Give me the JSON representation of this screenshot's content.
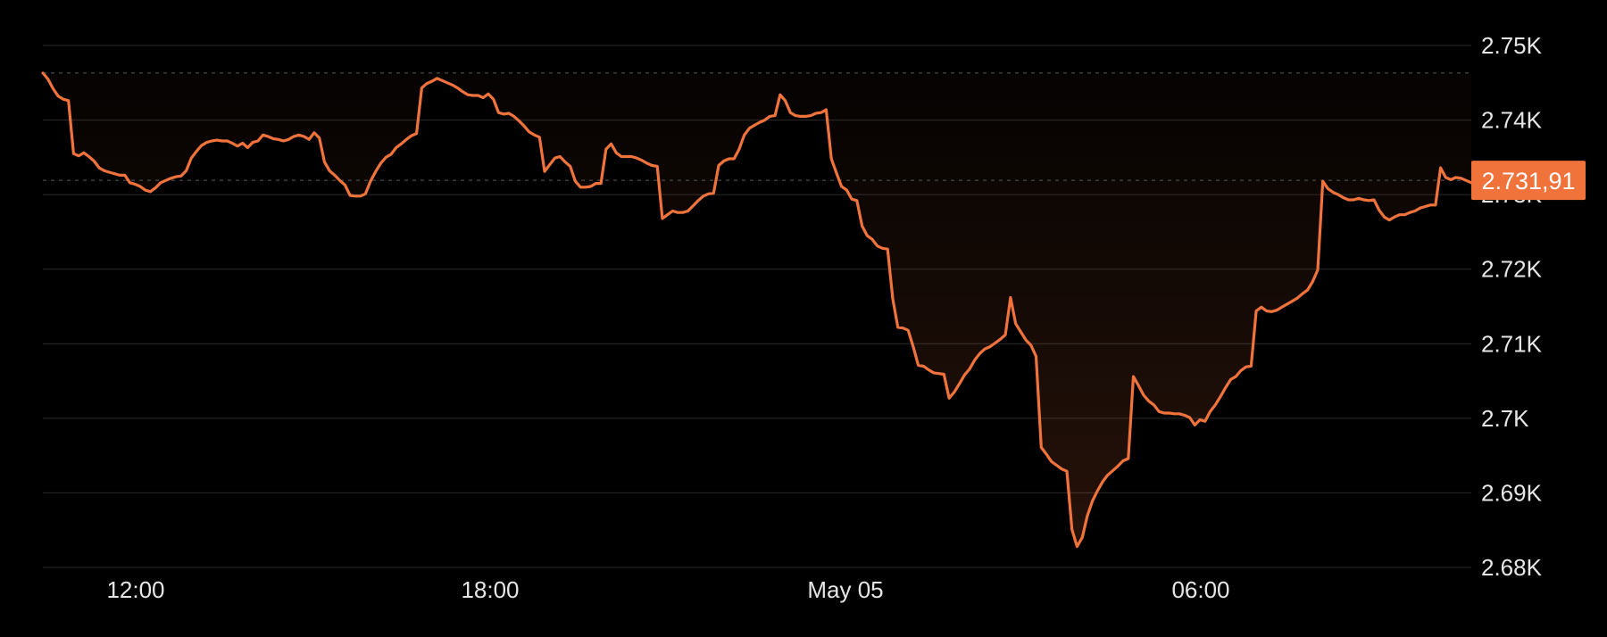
{
  "chart_data": {
    "type": "area",
    "series": [
      {
        "values": [
          2746.3,
          2745.5,
          2744.2,
          2743.2,
          2742.8,
          2742.6,
          2735.5,
          2735.2,
          2735.6,
          2735.1,
          2734.5,
          2733.6,
          2733.2,
          2733.0,
          2732.8,
          2732.6,
          2732.6,
          2731.6,
          2731.4,
          2731.1,
          2730.6,
          2730.4,
          2730.9,
          2731.6,
          2731.9,
          2732.2,
          2732.4,
          2732.5,
          2733.2,
          2734.9,
          2735.8,
          2736.6,
          2737.0,
          2737.2,
          2737.3,
          2737.2,
          2737.2,
          2736.9,
          2736.5,
          2736.9,
          2736.3,
          2737.0,
          2737.2,
          2738.0,
          2737.8,
          2737.5,
          2737.4,
          2737.2,
          2737.4,
          2737.8,
          2738.0,
          2737.8,
          2737.4,
          2738.3,
          2737.6,
          2734.4,
          2733.2,
          2732.6,
          2731.9,
          2731.3,
          2729.9,
          2729.8,
          2729.8,
          2730.1,
          2731.8,
          2733.1,
          2734.2,
          2735.0,
          2735.4,
          2736.3,
          2736.8,
          2737.4,
          2737.9,
          2738.2,
          2744.3,
          2744.9,
          2745.2,
          2745.6,
          2745.3,
          2745.0,
          2744.7,
          2744.3,
          2743.8,
          2743.4,
          2743.3,
          2743.3,
          2743.0,
          2743.5,
          2742.8,
          2741.0,
          2740.8,
          2740.9,
          2740.5,
          2739.9,
          2739.2,
          2738.4,
          2738.0,
          2737.7,
          2733.1,
          2734.0,
          2734.9,
          2735.1,
          2734.4,
          2733.8,
          2731.8,
          2731.0,
          2731.0,
          2731.1,
          2731.5,
          2731.5,
          2736.1,
          2736.8,
          2735.6,
          2735.1,
          2735.1,
          2735.1,
          2734.9,
          2734.6,
          2734.2,
          2733.9,
          2733.8,
          2726.8,
          2727.3,
          2727.8,
          2727.6,
          2727.6,
          2727.8,
          2728.5,
          2729.2,
          2729.8,
          2730.1,
          2730.2,
          2733.9,
          2734.5,
          2734.8,
          2734.8,
          2736.1,
          2738.0,
          2738.9,
          2739.3,
          2739.7,
          2740.0,
          2740.5,
          2740.6,
          2743.4,
          2742.6,
          2741.0,
          2740.6,
          2740.5,
          2740.5,
          2740.6,
          2740.9,
          2741.0,
          2741.4,
          2734.8,
          2732.9,
          2731.1,
          2730.6,
          2729.4,
          2729.2,
          2725.8,
          2724.5,
          2724.0,
          2723.1,
          2722.8,
          2722.7,
          2716.0,
          2712.2,
          2712.1,
          2711.8,
          2709.6,
          2707.1,
          2707.0,
          2706.5,
          2706.1,
          2706.0,
          2705.9,
          2702.7,
          2703.5,
          2704.6,
          2705.8,
          2706.6,
          2707.8,
          2708.7,
          2709.3,
          2709.6,
          2710.1,
          2710.6,
          2711.2,
          2716.2,
          2712.7,
          2711.6,
          2710.5,
          2709.8,
          2708.3,
          2696.1,
          2695.2,
          2694.2,
          2693.7,
          2693.2,
          2692.9,
          2685.1,
          2682.8,
          2684.0,
          2686.9,
          2688.9,
          2690.3,
          2691.5,
          2692.4,
          2693.0,
          2693.6,
          2694.3,
          2694.6,
          2705.6,
          2704.4,
          2703.1,
          2702.3,
          2701.8,
          2700.9,
          2700.7,
          2700.7,
          2700.6,
          2700.6,
          2700.4,
          2700.1,
          2699.1,
          2699.8,
          2699.6,
          2700.9,
          2701.8,
          2702.9,
          2704.1,
          2705.2,
          2705.6,
          2706.4,
          2706.9,
          2707.0,
          2714.4,
          2714.9,
          2714.4,
          2714.3,
          2714.5,
          2714.9,
          2715.3,
          2715.7,
          2716.1,
          2716.7,
          2717.2,
          2718.3,
          2719.9,
          2731.8,
          2730.8,
          2730.3,
          2730.0,
          2729.6,
          2729.3,
          2729.3,
          2729.5,
          2729.3,
          2729.2,
          2729.3,
          2727.9,
          2727.0,
          2726.6,
          2727.0,
          2727.3,
          2727.3,
          2727.6,
          2727.8,
          2728.2,
          2728.4,
          2728.6,
          2728.6,
          2733.6,
          2732.3,
          2732.0,
          2732.3,
          2732.2,
          2731.9,
          2731.6
        ]
      }
    ],
    "x_ticks": [
      "12:00",
      "18:00",
      "May 05",
      "06:00"
    ],
    "y_ticks": [
      "2.75K",
      "2.74K",
      "2.73K",
      "2.72K",
      "2.71K",
      "2.7K",
      "2.69K",
      "2.68K"
    ],
    "ylim": [
      2680,
      2750
    ],
    "reference_value": 2746.3,
    "current_value": 2731.91,
    "current_label": "2.731,91",
    "grid": true,
    "line_color": "#f0733c",
    "fill_color": "#f0733c",
    "badge_color": "#f0733c",
    "background": "#000000"
  }
}
